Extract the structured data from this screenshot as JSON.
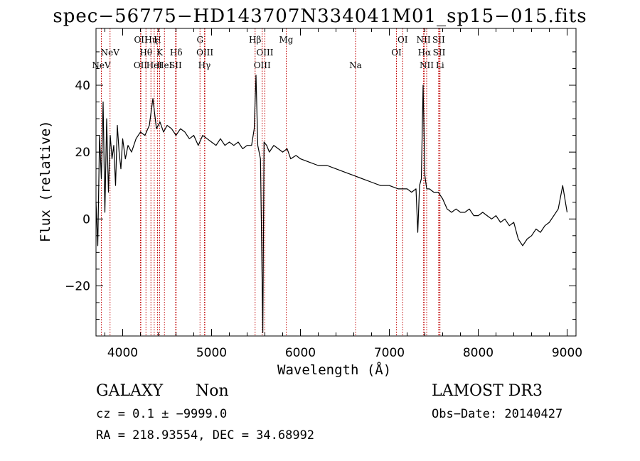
{
  "chart_data": {
    "type": "line",
    "title": "spec−56775−HD143707N334041M01_sp15−015.fits",
    "xlabel": "Wavelength (Å)",
    "ylabel": "Flux (relative)",
    "xlim": [
      3700,
      9100
    ],
    "ylim": [
      -35,
      57
    ],
    "xticks": [
      4000,
      5000,
      6000,
      7000,
      8000,
      9000
    ],
    "xtick_labels": [
      "4000",
      "5000",
      "6000",
      "7000",
      "8000",
      "9000"
    ],
    "yticks": [
      -20,
      0,
      20,
      40
    ],
    "ytick_labels": [
      "−20",
      "0",
      "20",
      "40"
    ],
    "series": [
      {
        "x": [
          3700,
          3720,
          3740,
          3760,
          3780,
          3800,
          3820,
          3840,
          3860,
          3880,
          3900,
          3920,
          3940,
          3960,
          3980,
          4000,
          4030,
          4060,
          4100,
          4150,
          4200,
          4250,
          4300,
          4340,
          4380,
          4420,
          4460,
          4500,
          4550,
          4600,
          4650,
          4700,
          4750,
          4800,
          4850,
          4900,
          4950,
          5000,
          5050,
          5100,
          5150,
          5200,
          5250,
          5300,
          5350,
          5400,
          5450,
          5480,
          5500,
          5520,
          5550,
          5577,
          5590,
          5620,
          5650,
          5700,
          5750,
          5800,
          5850,
          5890,
          5950,
          6000,
          6100,
          6200,
          6300,
          6400,
          6500,
          6600,
          6700,
          6800,
          6900,
          7000,
          7100,
          7200,
          7250,
          7300,
          7320,
          7340,
          7360,
          7380,
          7400,
          7420,
          7450,
          7500,
          7550,
          7600,
          7650,
          7700,
          7750,
          7800,
          7850,
          7900,
          7950,
          8000,
          8050,
          8100,
          8150,
          8200,
          8250,
          8300,
          8350,
          8400,
          8450,
          8500,
          8550,
          8600,
          8650,
          8700,
          8750,
          8800,
          8850,
          8900,
          8950,
          9000
        ],
        "y": [
          5,
          -8,
          25,
          12,
          35,
          2,
          30,
          8,
          25,
          18,
          22,
          10,
          28,
          20,
          15,
          24,
          18,
          22,
          20,
          24,
          26,
          25,
          28,
          36,
          27,
          29,
          26,
          28,
          27,
          25,
          27,
          26,
          24,
          25,
          22,
          25,
          24,
          23,
          22,
          24,
          22,
          23,
          22,
          23,
          21,
          22,
          22,
          27,
          43,
          22,
          18,
          -34,
          23,
          22,
          20,
          22,
          21,
          20,
          21,
          18,
          19,
          18,
          17,
          16,
          16,
          15,
          14,
          13,
          12,
          11,
          10,
          10,
          9,
          9,
          8,
          9,
          -4,
          10,
          12,
          40,
          13,
          9,
          9,
          8,
          8,
          6,
          3,
          2,
          3,
          2,
          2,
          3,
          1,
          1,
          2,
          1,
          0,
          1,
          -1,
          0,
          -2,
          -1,
          -6,
          -8,
          -6,
          -5,
          -3,
          -4,
          -2,
          -1,
          1,
          3,
          10,
          2
        ]
      }
    ],
    "line_markers": [
      {
        "label": "NeV",
        "x": 3760,
        "row": 3
      },
      {
        "label": "NeV",
        "x": 3858,
        "row": 2
      },
      {
        "label": "OII",
        "x": 4200,
        "row": 3
      },
      {
        "label": "OII",
        "x": 4205,
        "row": 1
      },
      {
        "label": "Hθ",
        "x": 4262,
        "row": 2
      },
      {
        "label": "Hη",
        "x": 4318,
        "row": 1
      },
      {
        "label": "HeI",
        "x": 4355,
        "row": 3
      },
      {
        "label": "H",
        "x": 4392,
        "row": 1
      },
      {
        "label": "K",
        "x": 4416,
        "row": 2
      },
      {
        "label": "HeI",
        "x": 4470,
        "row": 3
      },
      {
        "label": "Hδ",
        "x": 4602,
        "row": 2
      },
      {
        "label": "SII",
        "x": 4595,
        "row": 3
      },
      {
        "label": "G",
        "x": 4870,
        "row": 1
      },
      {
        "label": "OIII",
        "x": 4925,
        "row": 2
      },
      {
        "label": "Hγ",
        "x": 4920,
        "row": 3
      },
      {
        "label": "Hβ",
        "x": 5490,
        "row": 1
      },
      {
        "label": "OIII",
        "x": 5600,
        "row": 2
      },
      {
        "label": "OIII",
        "x": 5570,
        "row": 3
      },
      {
        "label": "Mg",
        "x": 5840,
        "row": 1
      },
      {
        "label": "Na",
        "x": 6620,
        "row": 3
      },
      {
        "label": "OI",
        "x": 7150,
        "row": 1
      },
      {
        "label": "OI",
        "x": 7080,
        "row": 2
      },
      {
        "label": "NII",
        "x": 7385,
        "row": 1
      },
      {
        "label": "Hα",
        "x": 7395,
        "row": 2
      },
      {
        "label": "NII",
        "x": 7420,
        "row": 3
      },
      {
        "label": "SII",
        "x": 7555,
        "row": 1
      },
      {
        "label": "SII",
        "x": 7560,
        "row": 2
      },
      {
        "label": "Li",
        "x": 7570,
        "row": 3
      }
    ],
    "grid": false,
    "legend": "none"
  },
  "info": {
    "class": "GALAXY",
    "subclass": "Non",
    "survey": "LAMOST DR3",
    "cz": "cz = 0.1 ± −9999.0",
    "obs_date": "Obs−Date: 20140427",
    "coords": "RA = 218.93554, DEC =  34.68992"
  }
}
